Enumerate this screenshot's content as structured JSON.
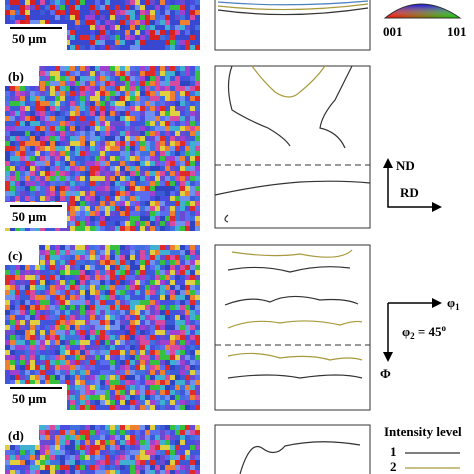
{
  "panels": [
    {
      "scale_bar": "50 μm"
    },
    {
      "label": "(b)",
      "scale_bar": "50 μm"
    },
    {
      "label": "(c)",
      "scale_bar": "50 μm"
    },
    {
      "label": "(d)"
    }
  ],
  "legend_triangle": {
    "corner_left": "001",
    "corner_right": "101"
  },
  "axes_b": {
    "vertical": "ND",
    "horizontal": "RD"
  },
  "axes_c": {
    "phi1": {
      "symbol": "φ",
      "subscript": "1"
    },
    "phi2": {
      "symbol": "φ",
      "subscript": "2",
      "rest": " = 45",
      "superscript": "o"
    },
    "Phi": "Φ"
  },
  "intensity_legend": {
    "title": "Intensity level",
    "levels": [
      "1",
      "2"
    ]
  }
}
